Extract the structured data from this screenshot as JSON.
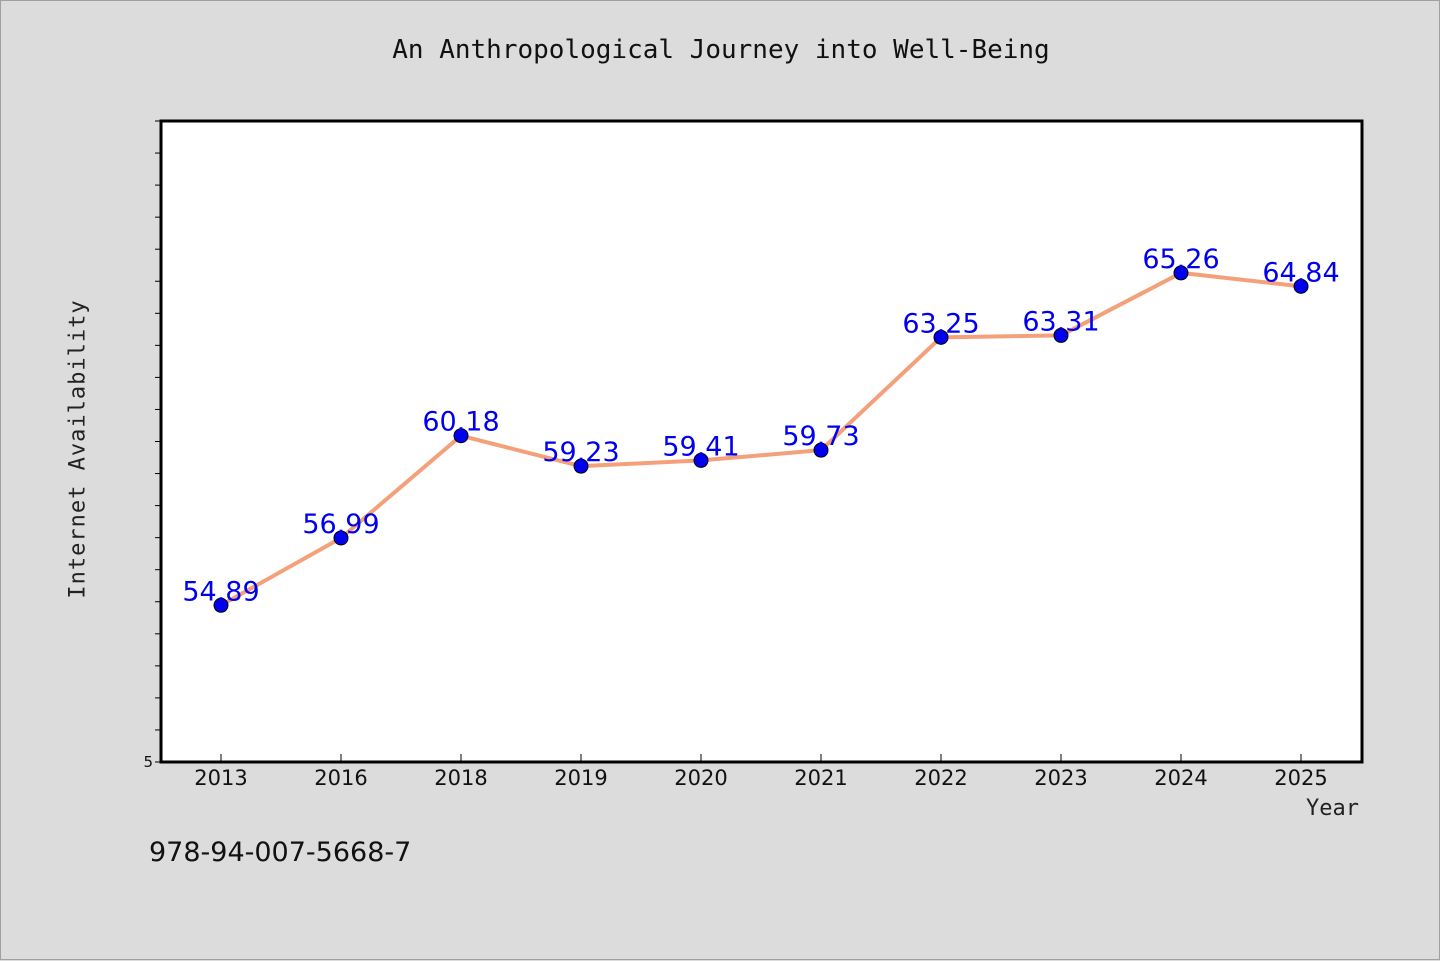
{
  "chart_data": {
    "type": "line",
    "title": "An Anthropological Journey into Well-Being",
    "xlabel": "Year",
    "ylabel": "Internet Availability",
    "categories": [
      "2013",
      "2016",
      "2018",
      "2019",
      "2020",
      "2021",
      "2022",
      "2023",
      "2024",
      "2025"
    ],
    "series": [
      {
        "values": [
          54.89,
          56.99,
          60.18,
          59.23,
          59.41,
          59.73,
          63.25,
          63.31,
          65.26,
          64.84
        ],
        "data_labels": [
          "54.89",
          "56.99",
          "60.18",
          "59.23",
          "59.41",
          "59.73",
          "63.25",
          "63.31",
          "65.26",
          "64.84"
        ],
        "line_color": "#f4a07a",
        "marker_color": "#0000ee"
      }
    ],
    "ylim": [
      50,
      70
    ],
    "y_tick_labels": [
      "5"
    ],
    "y_minor_step": 1,
    "grid": false,
    "label_color": "#0000ee"
  },
  "footer_code": "978-94-007-5668-7"
}
